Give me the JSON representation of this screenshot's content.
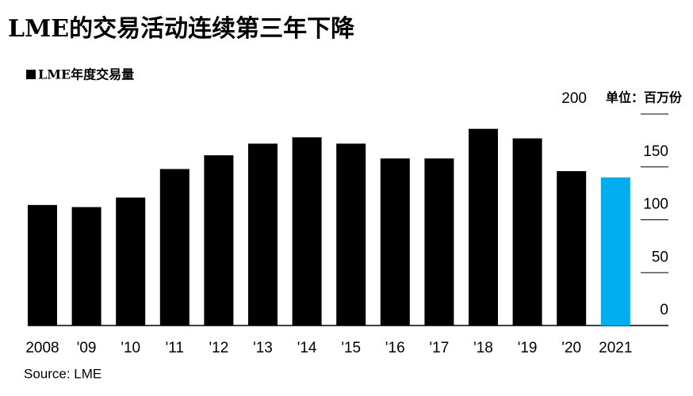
{
  "chart_data": {
    "type": "bar",
    "title": "LME的交易活动连续第三年下降",
    "legend": "LME年度交易量",
    "unit": "单位：百万份",
    "source": "Source: LME",
    "categories": [
      "2008",
      "'09",
      "'10",
      "'11",
      "'12",
      "'13",
      "'14",
      "'15",
      "'16",
      "'17",
      "'18",
      "'19",
      "'20",
      "2021"
    ],
    "values": [
      114,
      112,
      121,
      148,
      161,
      172,
      178,
      172,
      158,
      158,
      186,
      177,
      146,
      140
    ],
    "colors": [
      "#000000",
      "#000000",
      "#000000",
      "#000000",
      "#000000",
      "#000000",
      "#000000",
      "#000000",
      "#000000",
      "#000000",
      "#000000",
      "#000000",
      "#000000",
      "#00aeef"
    ],
    "ylim": [
      0,
      200
    ],
    "yticks": [
      0,
      50,
      100,
      150,
      200
    ]
  }
}
